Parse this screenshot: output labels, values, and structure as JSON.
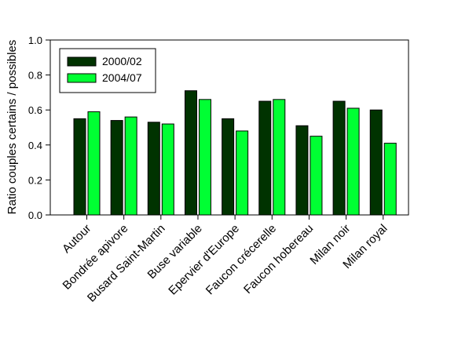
{
  "chart_data": {
    "type": "bar",
    "ylabel": "Ratio couples certains / possibles",
    "ylim": [
      0,
      1.0
    ],
    "yticks": [
      "0.0",
      "0.2",
      "0.4",
      "0.6",
      "0.8",
      "1.0"
    ],
    "categories": [
      "Autour",
      "Bondrée apivore",
      "Busard Saint-Martin",
      "Buse variable",
      "Epervier d'Europe",
      "Faucon crécerelle",
      "Faucon hobereau",
      "Milan noir",
      "Milan royal"
    ],
    "series": [
      {
        "name": "2000/02",
        "color": "#003300",
        "values": [
          0.55,
          0.54,
          0.53,
          0.71,
          0.55,
          0.65,
          0.51,
          0.65,
          0.6
        ]
      },
      {
        "name": "2004/07",
        "color": "#00ff33",
        "values": [
          0.59,
          0.56,
          0.52,
          0.66,
          0.48,
          0.66,
          0.45,
          0.61,
          0.41
        ]
      }
    ],
    "legend_position": "top-left",
    "grid": false
  }
}
